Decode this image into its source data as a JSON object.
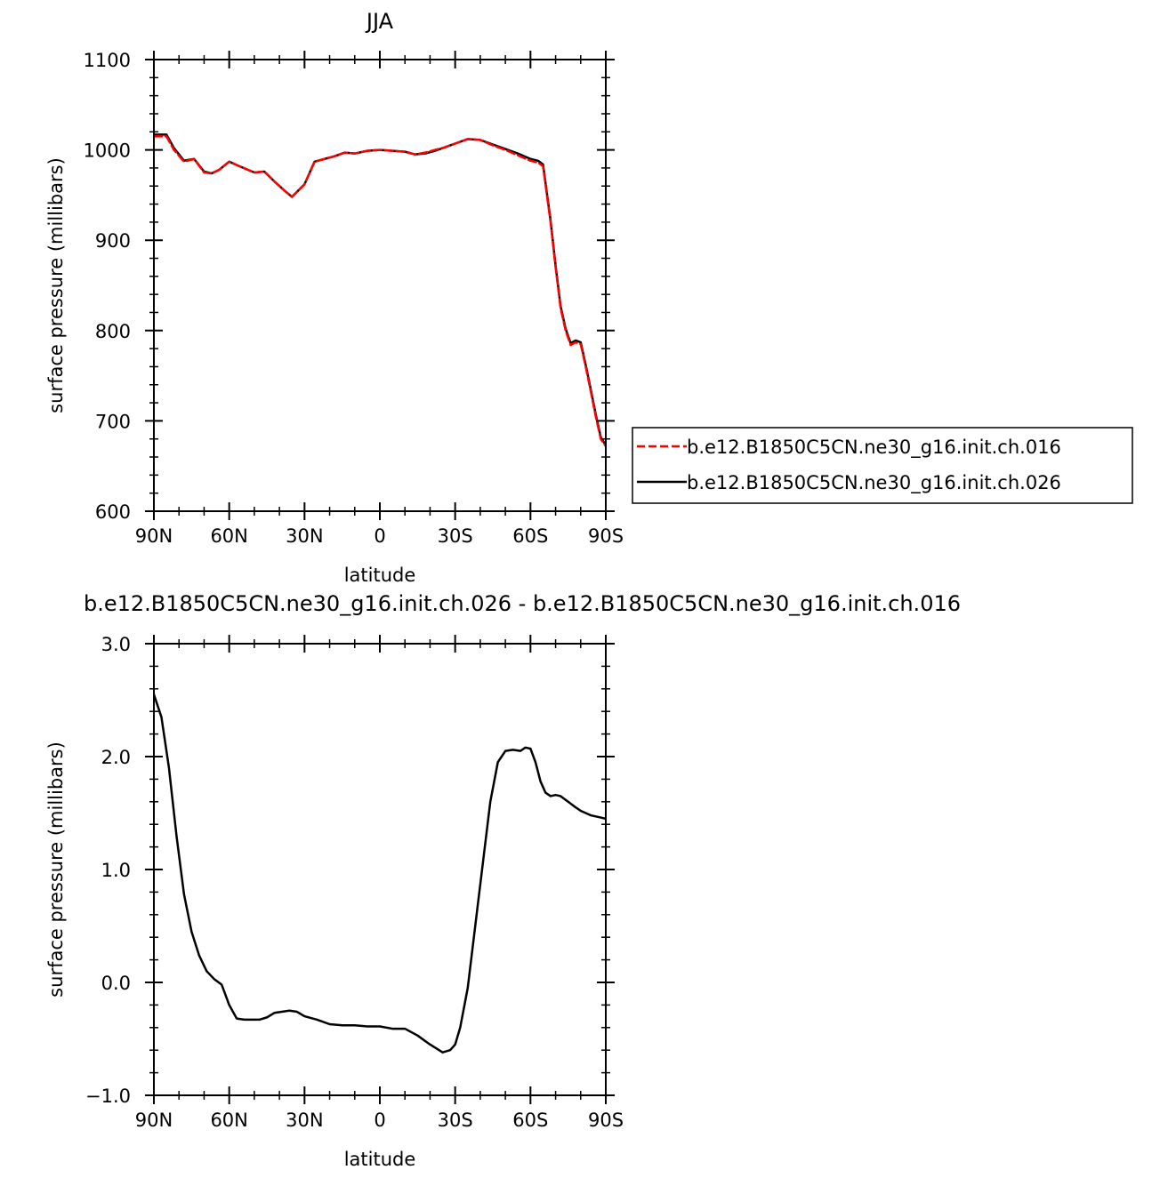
{
  "chart_data": [
    {
      "type": "line",
      "title": "JJA",
      "xlabel": "latitude",
      "ylabel": "surface pressure (millibars)",
      "xlim": [
        90,
        -90
      ],
      "ylim": [
        600,
        1100
      ],
      "x_ticks": [
        90,
        60,
        30,
        0,
        -30,
        -60,
        -90
      ],
      "x_tick_labels": [
        "90N",
        "60N",
        "30N",
        "0",
        "30S",
        "60S",
        "90S"
      ],
      "y_ticks": [
        600,
        700,
        800,
        900,
        1000,
        1100
      ],
      "y_tick_labels": [
        "600",
        "700",
        "800",
        "900",
        "1000",
        "1100"
      ],
      "legend": "right",
      "series": [
        {
          "name": "b.e12.B1850C5CN.ne30_g16.init.ch.016",
          "color": "#ff0000",
          "style": "dashed",
          "x": [
            90,
            85,
            82,
            78,
            74,
            70,
            67,
            64,
            60,
            56,
            50,
            46,
            42,
            38,
            35,
            30,
            26,
            22,
            18,
            14,
            10,
            5,
            0,
            -5,
            -10,
            -14,
            -18,
            -22,
            -26,
            -30,
            -35,
            -40,
            -45,
            -50,
            -55,
            -60,
            -63,
            -65,
            -68,
            -70,
            -72,
            -74,
            -76,
            -78,
            -80,
            -82,
            -84,
            -86,
            -88,
            -90
          ],
          "y": [
            1015,
            1015,
            1000,
            987,
            990,
            975,
            974,
            978,
            987,
            982,
            975,
            976,
            965,
            955,
            948,
            962,
            987,
            990,
            993,
            997,
            996,
            999,
            1000,
            999,
            998,
            995,
            997,
            1000,
            1003,
            1007,
            1012,
            1011,
            1005,
            1000,
            994,
            988,
            986,
            982,
            920,
            870,
            825,
            800,
            784,
            787,
            785,
            760,
            733,
            705,
            680,
            672
          ]
        },
        {
          "name": "b.e12.B1850C5CN.ne30_g16.init.ch.026",
          "color": "#000000",
          "style": "solid",
          "x": [
            90,
            85,
            82,
            78,
            74,
            70,
            67,
            64,
            60,
            56,
            50,
            46,
            42,
            38,
            35,
            30,
            26,
            22,
            18,
            14,
            10,
            5,
            0,
            -5,
            -10,
            -14,
            -18,
            -22,
            -26,
            -30,
            -35,
            -40,
            -45,
            -50,
            -55,
            -60,
            -63,
            -65,
            -68,
            -70,
            -72,
            -74,
            -76,
            -78,
            -80,
            -82,
            -84,
            -86,
            -88,
            -90
          ],
          "y": [
            1017,
            1017,
            1002,
            988,
            990,
            976,
            974,
            978,
            987,
            982,
            975,
            976,
            965,
            955,
            948,
            962,
            987,
            990,
            993,
            997,
            996,
            999,
            1000,
            999,
            998,
            995,
            996,
            999,
            1003,
            1007,
            1012,
            1011,
            1006,
            1001,
            996,
            990,
            988,
            984,
            922,
            872,
            827,
            802,
            786,
            789,
            787,
            762,
            735,
            707,
            682,
            673
          ]
        }
      ]
    },
    {
      "type": "line",
      "title": "b.e12.B1850C5CN.ne30_g16.init.ch.026 - b.e12.B1850C5CN.ne30_g16.init.ch.016",
      "xlabel": "latitude",
      "ylabel": "surface pressure (millibars)",
      "xlim": [
        90,
        -90
      ],
      "ylim": [
        -1.0,
        3.0
      ],
      "x_ticks": [
        90,
        60,
        30,
        0,
        -30,
        -60,
        -90
      ],
      "x_tick_labels": [
        "90N",
        "60N",
        "30N",
        "0",
        "30S",
        "60S",
        "90S"
      ],
      "y_ticks": [
        -1.0,
        0.0,
        1.0,
        2.0,
        3.0
      ],
      "y_tick_labels": [
        "−1.0",
        "0.0",
        "1.0",
        "2.0",
        "3.0"
      ],
      "series": [
        {
          "color": "#000000",
          "style": "solid",
          "x": [
            90,
            87,
            84,
            81,
            78,
            75,
            72,
            69,
            66,
            63,
            60,
            57,
            54,
            51,
            48,
            45,
            42,
            39,
            36,
            33,
            30,
            25,
            20,
            15,
            10,
            5,
            0,
            -5,
            -10,
            -15,
            -20,
            -25,
            -28,
            -30,
            -32,
            -35,
            -38,
            -41,
            -44,
            -47,
            -50,
            -53,
            -56,
            -58,
            -60,
            -62,
            -64,
            -66,
            -68,
            -70,
            -72,
            -75,
            -78,
            -80,
            -82,
            -84,
            -86,
            -88,
            -90
          ],
          "y": [
            2.55,
            2.35,
            1.9,
            1.3,
            0.78,
            0.45,
            0.24,
            0.1,
            0.03,
            -0.02,
            -0.2,
            -0.32,
            -0.33,
            -0.33,
            -0.33,
            -0.31,
            -0.27,
            -0.26,
            -0.25,
            -0.26,
            -0.3,
            -0.33,
            -0.37,
            -0.38,
            -0.38,
            -0.39,
            -0.39,
            -0.41,
            -0.41,
            -0.47,
            -0.55,
            -0.62,
            -0.6,
            -0.55,
            -0.4,
            -0.05,
            0.5,
            1.05,
            1.6,
            1.95,
            2.05,
            2.06,
            2.05,
            2.08,
            2.07,
            1.95,
            1.78,
            1.68,
            1.65,
            1.66,
            1.65,
            1.6,
            1.55,
            1.52,
            1.5,
            1.48,
            1.47,
            1.46,
            1.45
          ]
        }
      ]
    }
  ]
}
